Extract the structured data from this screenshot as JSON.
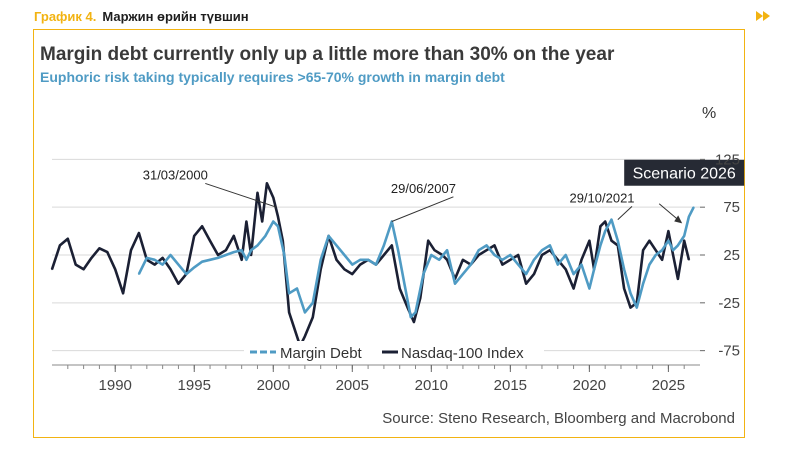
{
  "header": {
    "figure_number": "График 4.",
    "figure_title": "Маржин өрийн түвшин",
    "arrow_icon": "double-arrow-right-icon"
  },
  "colors": {
    "accent": "#f2b312",
    "margin_debt": "#4f9bc4",
    "nasdaq": "#1b2034",
    "title": "#3a3a3a",
    "subtitle": "#4f9bc4",
    "grid": "#d9d9d9"
  },
  "chart_data": {
    "type": "line",
    "title": "Margin debt currently only up a little more than 30% on the year",
    "subtitle": "Euphoric risk taking typically requires >65-70% growth in margin debt",
    "unit": "%",
    "xlabel": "",
    "ylabel": "%",
    "xlim": [
      1986,
      2027
    ],
    "ylim": [
      -90,
      140
    ],
    "x_ticks": [
      1990,
      1995,
      2000,
      2005,
      2010,
      2015,
      2020,
      2025
    ],
    "y_ticks": [
      -75,
      -25,
      25,
      75,
      125
    ],
    "grid": true,
    "legend_position": "bottom-center",
    "source": "Source: Steno Research, Bloomberg and Macrobond",
    "annotations": [
      {
        "text": "31/03/2000",
        "x": 2000.2,
        "y": 75,
        "label_x": 1993.8,
        "label_y": 104
      },
      {
        "text": "29/06/2007",
        "x": 2007.5,
        "y": 60,
        "label_x": 2009.5,
        "label_y": 90
      },
      {
        "text": "29/10/2021",
        "x": 2021.8,
        "y": 62,
        "label_x": 2020.8,
        "label_y": 80
      },
      {
        "text": "Scenario 2026",
        "x": 2026.0,
        "y": 56,
        "label_x": 2026.0,
        "label_y": 111,
        "boxed": true
      }
    ],
    "series": [
      {
        "name": "Margin Debt",
        "style": "dashed",
        "x": [
          1991.5,
          1992,
          1992.5,
          1993,
          1993.5,
          1994,
          1994.5,
          1995,
          1995.5,
          1996,
          1996.5,
          1997,
          1997.5,
          1998,
          1998.3,
          1998.6,
          1999,
          1999.5,
          2000,
          2000.3,
          2000.7,
          2001,
          2001.5,
          2002,
          2002.5,
          2003,
          2003.5,
          2004,
          2004.5,
          2005,
          2005.5,
          2006,
          2006.5,
          2007,
          2007.5,
          2007.9,
          2008.3,
          2008.7,
          2009,
          2009.5,
          2010,
          2010.5,
          2011,
          2011.5,
          2012,
          2012.5,
          2013,
          2013.5,
          2014,
          2014.5,
          2015,
          2015.5,
          2016,
          2016.5,
          2017,
          2017.5,
          2018,
          2018.5,
          2019,
          2019.5,
          2020,
          2020.3,
          2020.7,
          2021,
          2021.4,
          2021.8,
          2022.2,
          2022.6,
          2023,
          2023.4,
          2023.8,
          2024.2,
          2024.6,
          2025,
          2025.3,
          2025.6,
          2026,
          2026.3,
          2026.6
        ],
        "values": [
          5,
          22,
          20,
          15,
          25,
          15,
          5,
          12,
          18,
          20,
          22,
          25,
          28,
          30,
          20,
          30,
          35,
          45,
          60,
          55,
          25,
          -15,
          -10,
          -35,
          -25,
          20,
          45,
          35,
          25,
          15,
          20,
          20,
          15,
          35,
          60,
          30,
          -5,
          -40,
          -35,
          5,
          25,
          20,
          30,
          -5,
          5,
          15,
          30,
          35,
          25,
          20,
          25,
          15,
          5,
          20,
          30,
          35,
          15,
          25,
          5,
          15,
          -10,
          10,
          35,
          50,
          62,
          40,
          10,
          -15,
          -30,
          -5,
          15,
          25,
          30,
          40,
          30,
          35,
          45,
          65,
          75
        ]
      },
      {
        "name": "Nasdaq-100 Index",
        "style": "solid",
        "x": [
          1986,
          1986.5,
          1987,
          1987.5,
          1988,
          1988.5,
          1989,
          1989.5,
          1990,
          1990.5,
          1991,
          1991.5,
          1992,
          1992.5,
          1993,
          1993.5,
          1994,
          1994.5,
          1995,
          1995.5,
          1996,
          1996.5,
          1997,
          1997.5,
          1998,
          1998.3,
          1998.6,
          1999,
          1999.3,
          1999.6,
          2000,
          2000.3,
          2000.6,
          2001,
          2001.3,
          2001.7,
          2002,
          2002.5,
          2003,
          2003.5,
          2004,
          2004.5,
          2005,
          2005.5,
          2006,
          2006.5,
          2007,
          2007.5,
          2008,
          2008.5,
          2008.9,
          2009.3,
          2009.8,
          2010.2,
          2010.7,
          2011,
          2011.5,
          2012,
          2012.5,
          2013,
          2013.5,
          2014,
          2014.5,
          2015,
          2015.5,
          2016,
          2016.5,
          2017,
          2017.5,
          2018,
          2018.5,
          2019,
          2019.5,
          2020,
          2020.3,
          2020.7,
          2021,
          2021.4,
          2021.8,
          2022.2,
          2022.6,
          2023,
          2023.4,
          2023.8,
          2024.2,
          2024.6,
          2025,
          2025.3,
          2025.6,
          2026,
          2026.3
        ],
        "values": [
          10,
          35,
          42,
          15,
          10,
          22,
          32,
          28,
          10,
          -15,
          30,
          48,
          20,
          15,
          22,
          10,
          -5,
          5,
          45,
          55,
          40,
          25,
          30,
          45,
          20,
          60,
          25,
          90,
          60,
          100,
          85,
          65,
          40,
          -35,
          -50,
          -70,
          -60,
          -40,
          10,
          45,
          20,
          10,
          5,
          15,
          20,
          15,
          25,
          35,
          -10,
          -30,
          -45,
          -20,
          40,
          30,
          25,
          20,
          0,
          20,
          15,
          25,
          30,
          35,
          15,
          20,
          25,
          -5,
          5,
          25,
          30,
          20,
          10,
          -10,
          20,
          40,
          10,
          55,
          60,
          40,
          35,
          -10,
          -30,
          -25,
          30,
          40,
          30,
          20,
          50,
          25,
          0,
          40,
          20
        ]
      }
    ]
  }
}
